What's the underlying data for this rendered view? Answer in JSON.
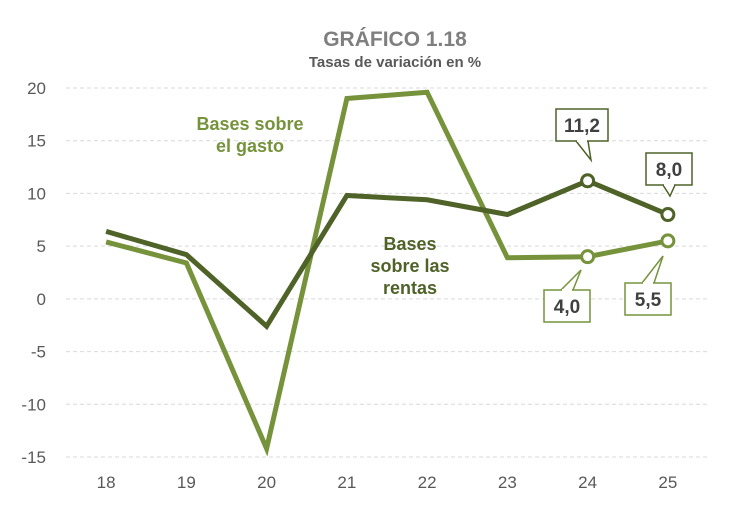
{
  "chart_data": {
    "type": "line",
    "title": "GRÁFICO 1.18",
    "subtitle": "Tasas de variación en %",
    "categories": [
      "18",
      "19",
      "20",
      "21",
      "22",
      "23",
      "24",
      "25"
    ],
    "ylim": [
      -15,
      20
    ],
    "yticks": [
      20,
      15,
      10,
      5,
      0,
      -5,
      -10,
      -15
    ],
    "ytick_labels": [
      "20",
      "15",
      "10",
      "5",
      "0",
      "-5",
      "-10",
      "-15"
    ],
    "grid": true,
    "series": [
      {
        "id": "gasto",
        "name": "Bases sobre el gasto",
        "label_lines": [
          "Bases sobre",
          "el gasto"
        ],
        "color": "#76933c",
        "values": [
          5.4,
          3.4,
          -14.2,
          19.0,
          19.6,
          3.9,
          4.0,
          5.5
        ],
        "markers": [
          {
            "index": 6,
            "label": "4,0"
          },
          {
            "index": 7,
            "label": "5,5"
          }
        ]
      },
      {
        "id": "rentas",
        "name": "Bases sobre las rentas",
        "label_lines": [
          "Bases",
          "sobre las",
          "rentas"
        ],
        "color": "#4f6228",
        "values": [
          6.4,
          4.2,
          -2.6,
          9.8,
          9.4,
          8.0,
          11.2,
          8.0
        ],
        "markers": [
          {
            "index": 6,
            "label": "11,2"
          },
          {
            "index": 7,
            "label": "8,0"
          }
        ]
      }
    ]
  }
}
